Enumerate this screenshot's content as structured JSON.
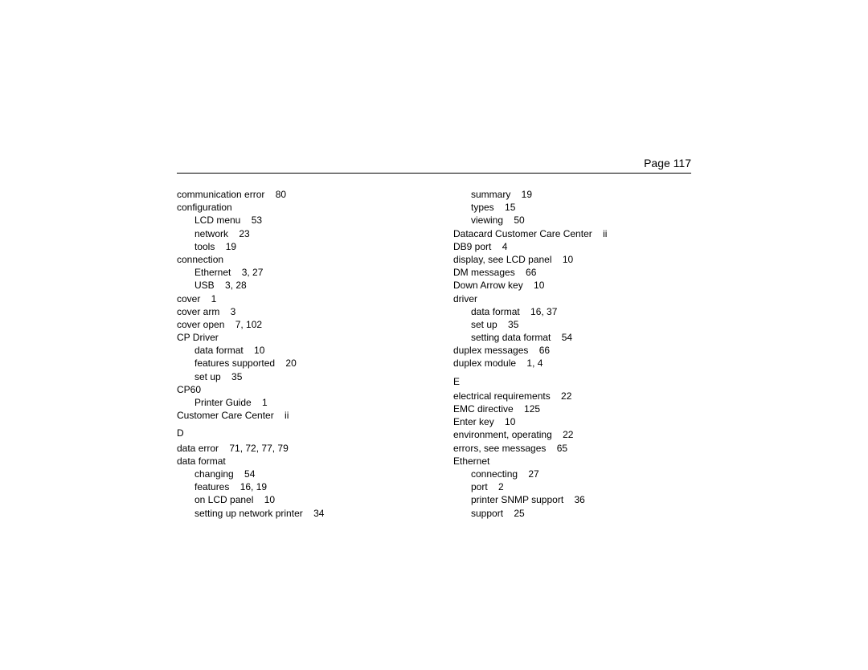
{
  "pageLabel": "Page 117",
  "left": [
    {
      "t": "communication error",
      "p": "80",
      "l": 0
    },
    {
      "t": "configuration",
      "p": "",
      "l": 0
    },
    {
      "t": "LCD menu",
      "p": "53",
      "l": 1
    },
    {
      "t": "network",
      "p": "23",
      "l": 1
    },
    {
      "t": "tools",
      "p": "19",
      "l": 1
    },
    {
      "t": "connection",
      "p": "",
      "l": 0
    },
    {
      "t": "Ethernet",
      "p": "3, 27",
      "l": 1
    },
    {
      "t": "USB",
      "p": "3, 28",
      "l": 1
    },
    {
      "t": "cover",
      "p": "1",
      "l": 0
    },
    {
      "t": "cover arm",
      "p": "3",
      "l": 0
    },
    {
      "t": "cover open",
      "p": "7, 102",
      "l": 0
    },
    {
      "t": "CP Driver",
      "p": "",
      "l": 0
    },
    {
      "t": "data format",
      "p": "10",
      "l": 1
    },
    {
      "t": "features supported",
      "p": "20",
      "l": 1
    },
    {
      "t": "set up",
      "p": "35",
      "l": 1
    },
    {
      "t": "CP60",
      "p": "",
      "l": 0
    },
    {
      "t": "Printer Guide",
      "p": "1",
      "l": 1
    },
    {
      "t": "Customer Care Center",
      "p": "ii",
      "l": 0
    },
    {
      "t": "D",
      "p": "",
      "l": 0,
      "section": true
    },
    {
      "t": "data error",
      "p": "71, 72, 77, 79",
      "l": 0
    },
    {
      "t": "data format",
      "p": "",
      "l": 0
    },
    {
      "t": "changing",
      "p": "54",
      "l": 1
    },
    {
      "t": "features",
      "p": "16, 19",
      "l": 1
    },
    {
      "t": "on LCD panel",
      "p": "10",
      "l": 1
    },
    {
      "t": "setting up network printer",
      "p": "34",
      "l": 1
    }
  ],
  "right": [
    {
      "t": "summary",
      "p": "19",
      "l": 1
    },
    {
      "t": "types",
      "p": "15",
      "l": 1
    },
    {
      "t": "viewing",
      "p": "50",
      "l": 1
    },
    {
      "t": "Datacard Customer Care Center",
      "p": "ii",
      "l": 0
    },
    {
      "t": "DB9 port",
      "p": "4",
      "l": 0
    },
    {
      "t": "display, see LCD panel",
      "p": "10",
      "l": 0
    },
    {
      "t": "DM messages",
      "p": "66",
      "l": 0
    },
    {
      "t": "Down Arrow key",
      "p": "10",
      "l": 0
    },
    {
      "t": "driver",
      "p": "",
      "l": 0
    },
    {
      "t": "data format",
      "p": "16, 37",
      "l": 1
    },
    {
      "t": "set up",
      "p": "35",
      "l": 1
    },
    {
      "t": "setting data format",
      "p": "54",
      "l": 1
    },
    {
      "t": "duplex messages",
      "p": "66",
      "l": 0
    },
    {
      "t": "duplex module",
      "p": "1, 4",
      "l": 0
    },
    {
      "t": "E",
      "p": "",
      "l": 0,
      "section": true
    },
    {
      "t": "electrical requirements",
      "p": "22",
      "l": 0
    },
    {
      "t": "EMC directive",
      "p": "125",
      "l": 0
    },
    {
      "t": "Enter key",
      "p": "10",
      "l": 0
    },
    {
      "t": "environment, operating",
      "p": "22",
      "l": 0
    },
    {
      "t": "errors, see messages",
      "p": "65",
      "l": 0
    },
    {
      "t": "Ethernet",
      "p": "",
      "l": 0
    },
    {
      "t": "connecting",
      "p": "27",
      "l": 1
    },
    {
      "t": "port",
      "p": "2",
      "l": 1
    },
    {
      "t": "printer SNMP support",
      "p": "36",
      "l": 1
    },
    {
      "t": "support",
      "p": "25",
      "l": 1
    }
  ]
}
